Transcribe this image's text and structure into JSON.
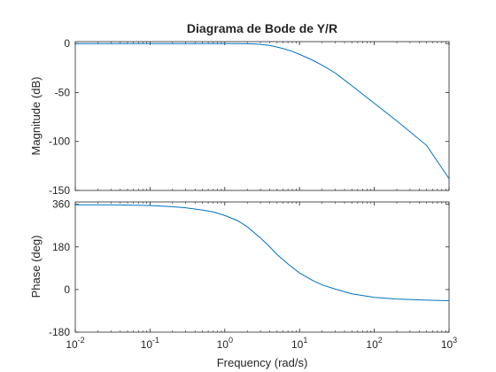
{
  "chart_data": [
    {
      "type": "line",
      "title": "Diagrama de Bode de Y/R",
      "xlabel": "",
      "ylabel": "Magnitude (dB)",
      "xscale": "log",
      "xlim": [
        0.01,
        1000
      ],
      "ylim": [
        -150,
        2
      ],
      "xticks": [
        0.01,
        0.1,
        1,
        10,
        100,
        1000
      ],
      "yticks": [
        0,
        -50,
        -100,
        -150
      ],
      "ytick_labels": [
        "0",
        "-50",
        "-100",
        "-150"
      ],
      "grid": false,
      "color": "#0072BD",
      "series": [
        {
          "x": [
            0.01,
            0.03,
            0.1,
            0.3,
            0.6,
            1,
            1.5,
            2,
            2.5,
            3,
            4,
            5,
            6,
            8,
            10,
            15,
            20,
            30,
            50,
            100,
            200,
            500,
            1000
          ],
          "values": [
            0,
            0,
            0,
            0,
            0,
            0,
            0,
            -0.2,
            -0.4,
            -0.8,
            -2,
            -3.5,
            -5,
            -8,
            -11,
            -17,
            -22,
            -30,
            -43,
            -61,
            -79,
            -104,
            -138
          ]
        }
      ]
    },
    {
      "type": "line",
      "title": "",
      "xlabel": "Frequency  (rad/s)",
      "ylabel": "Phase (deg)",
      "xscale": "log",
      "xlim": [
        0.01,
        1000
      ],
      "ylim": [
        -180,
        370
      ],
      "xticks": [
        0.01,
        0.1,
        1,
        10,
        100,
        1000
      ],
      "xtick_labels": [
        "10^-2",
        "10^-1",
        "10^0",
        "10^1",
        "10^2",
        "10^3"
      ],
      "yticks": [
        360,
        180,
        0,
        -180
      ],
      "ytick_labels": [
        "360",
        "180",
        "0",
        "-180"
      ],
      "grid": false,
      "color": "#0072BD",
      "series": [
        {
          "x": [
            0.01,
            0.03,
            0.1,
            0.2,
            0.3,
            0.5,
            0.7,
            1,
            1.5,
            2,
            3,
            4,
            5,
            7,
            10,
            15,
            20,
            30,
            50,
            100,
            200,
            500,
            1000
          ],
          "values": [
            358,
            358,
            355,
            350,
            345,
            336,
            328,
            313,
            290,
            265,
            218,
            180,
            148,
            108,
            70,
            38,
            20,
            2,
            -18,
            -33,
            -40,
            -45,
            -47
          ]
        }
      ]
    }
  ]
}
